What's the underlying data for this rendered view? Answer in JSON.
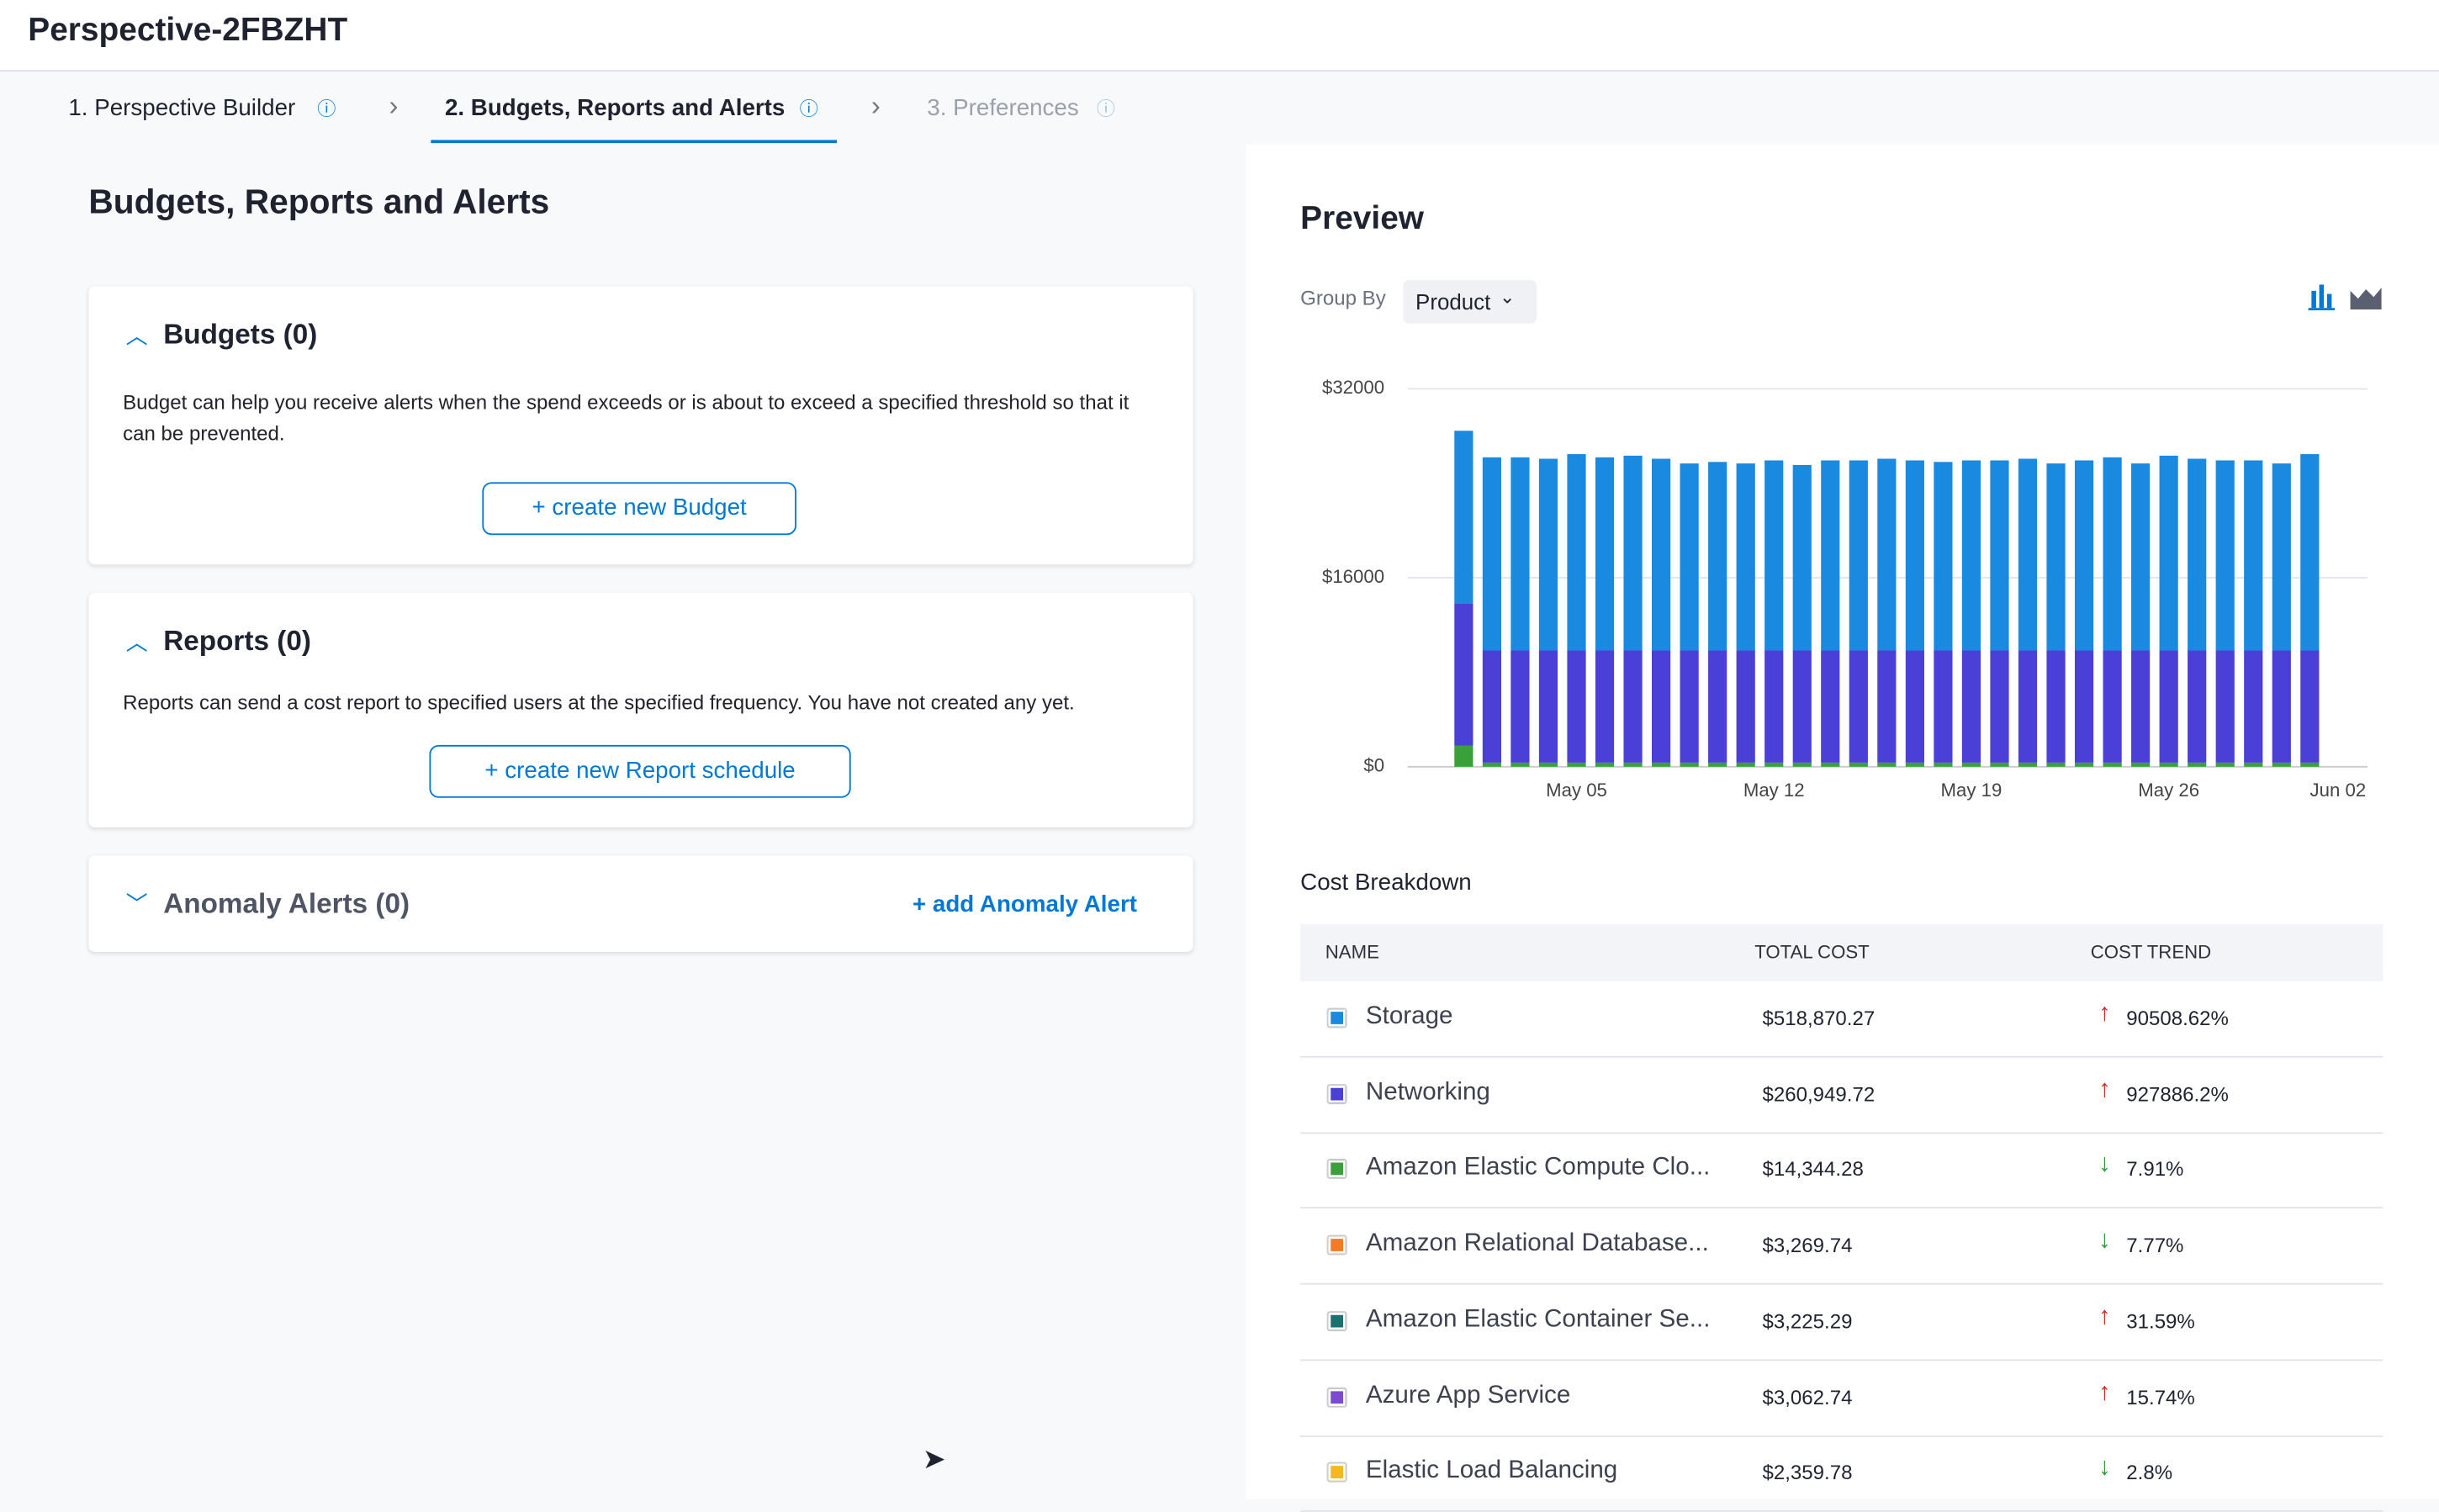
{
  "header": {
    "title": "Perspective-2FBZHT"
  },
  "steps": [
    {
      "label": "1. Perspective Builder"
    },
    {
      "label": "2. Budgets, Reports and Alerts"
    },
    {
      "label": "3. Preferences"
    }
  ],
  "section_title": "Budgets, Reports and Alerts",
  "budgets": {
    "title": "Budgets (0)",
    "text": "Budget can help you receive alerts when the spend exceeds or is about to exceed a specified threshold so that it can be prevented.",
    "button": "+ create new Budget"
  },
  "reports": {
    "title": "Reports (0)",
    "text": "Reports can send a cost report to specified users at the specified frequency. You have not created any yet.",
    "button": "+ create new Report schedule"
  },
  "anomaly": {
    "title": "Anomaly Alerts (0)",
    "button": "+ add Anomaly Alert"
  },
  "preview": {
    "title": "Preview",
    "group_by_label": "Group By",
    "group_by_value": "Product"
  },
  "chart_data": {
    "type": "bar",
    "stacked": true,
    "categories": [
      null,
      null,
      null,
      null,
      "May 05",
      null,
      null,
      null,
      null,
      null,
      null,
      "May 12",
      null,
      null,
      null,
      null,
      null,
      null,
      "May 19",
      null,
      null,
      null,
      null,
      null,
      null,
      "May 26",
      null,
      null,
      null,
      null,
      null,
      "Jun 02"
    ],
    "series": [
      {
        "name": "Amazon Elastic Compute Clo...",
        "color": "#3aa13a",
        "values": [
          1800,
          350,
          350,
          350,
          350,
          350,
          350,
          350,
          350,
          350,
          350,
          350,
          350,
          350,
          350,
          350,
          350,
          350,
          350,
          350,
          350,
          350,
          350,
          350,
          350,
          350,
          350,
          350,
          350,
          350,
          350,
          null
        ]
      },
      {
        "name": "Networking",
        "color": "#4a3fd6",
        "values": [
          12000,
          9500,
          9500,
          9500,
          9500,
          9500,
          9500,
          9500,
          9500,
          9500,
          9500,
          9500,
          9500,
          9500,
          9500,
          9500,
          9500,
          9500,
          9500,
          9500,
          9500,
          9500,
          9500,
          9500,
          9500,
          9500,
          9500,
          9500,
          9500,
          9500,
          9500,
          null
        ]
      },
      {
        "name": "Storage",
        "color": "#1a8ae0",
        "values": [
          14650,
          16350,
          16350,
          16230,
          16620,
          16350,
          16490,
          16230,
          15830,
          15960,
          15830,
          16090,
          15700,
          16090,
          16090,
          16230,
          16090,
          15960,
          16090,
          16090,
          16230,
          15830,
          16090,
          16350,
          15830,
          16490,
          16230,
          16090,
          16090,
          15830,
          16620,
          null
        ]
      }
    ],
    "ylim": [
      0,
      32000
    ],
    "yticks": [
      {
        "value": 0,
        "label": "$0"
      },
      {
        "value": 16000,
        "label": "$16000"
      },
      {
        "value": 32000,
        "label": "$32000"
      }
    ],
    "grid": true
  },
  "cost_breakdown": {
    "title": "Cost Breakdown",
    "columns": [
      "NAME",
      "TOTAL COST",
      "COST TREND"
    ],
    "rows": [
      {
        "name": "Storage",
        "total": "$518,870.27",
        "trend": "90508.62%",
        "direction": "up",
        "color": "#1a8ae0"
      },
      {
        "name": "Networking",
        "total": "$260,949.72",
        "trend": "927886.2%",
        "direction": "up",
        "color": "#4a3fd6"
      },
      {
        "name": "Amazon Elastic Compute Clo...",
        "total": "$14,344.28",
        "trend": "7.91%",
        "direction": "down",
        "color": "#3aa13a"
      },
      {
        "name": "Amazon Relational Database...",
        "total": "$3,269.74",
        "trend": "7.77%",
        "direction": "down",
        "color": "#f57a24"
      },
      {
        "name": "Amazon Elastic Container Se...",
        "total": "$3,225.29",
        "trend": "31.59%",
        "direction": "up",
        "color": "#1d7070"
      },
      {
        "name": "Azure App Service",
        "total": "$3,062.74",
        "trend": "15.74%",
        "direction": "up",
        "color": "#7b4bd0"
      },
      {
        "name": "Elastic Load Balancing",
        "total": "$2,359.78",
        "trend": "2.8%",
        "direction": "down",
        "color": "#f5b820"
      }
    ]
  }
}
